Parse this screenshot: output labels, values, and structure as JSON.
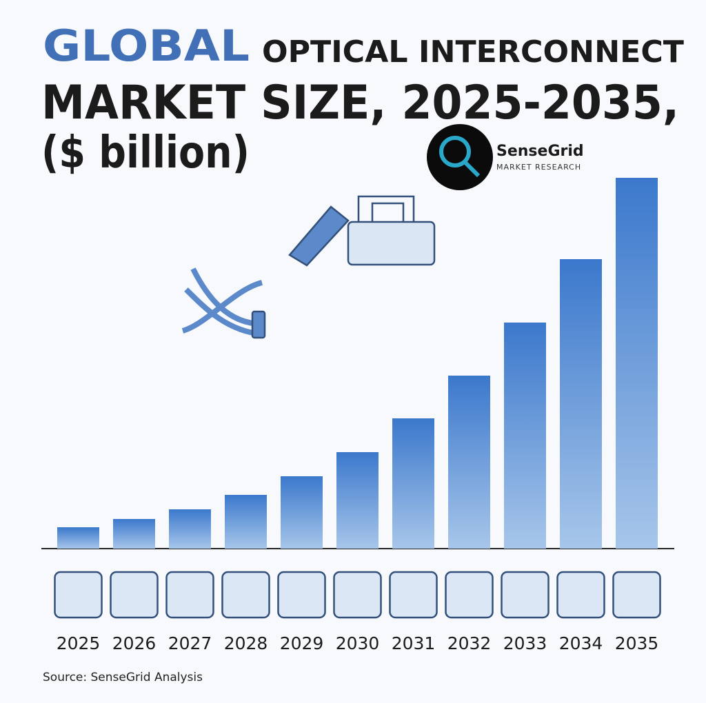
{
  "chart_data": {
    "type": "bar",
    "title": [
      "GLOBAL",
      "OPTICAL INTERCONNECT",
      "MARKET SIZE, 2025-2035,",
      "($ billion)"
    ],
    "logo": {
      "name": "SenseGrid",
      "tagline": "MARKET RESEARCH"
    },
    "categories": [
      "2025",
      "2026",
      "2027",
      "2028",
      "2029",
      "2030",
      "2031",
      "2032",
      "2033",
      "2034",
      "2035"
    ],
    "values": [
      31,
      43,
      57,
      78,
      105,
      140,
      189,
      251,
      328,
      420,
      538
    ],
    "color": "#3f7fd0",
    "source": "Source: SenseGrid Analysis"
  }
}
